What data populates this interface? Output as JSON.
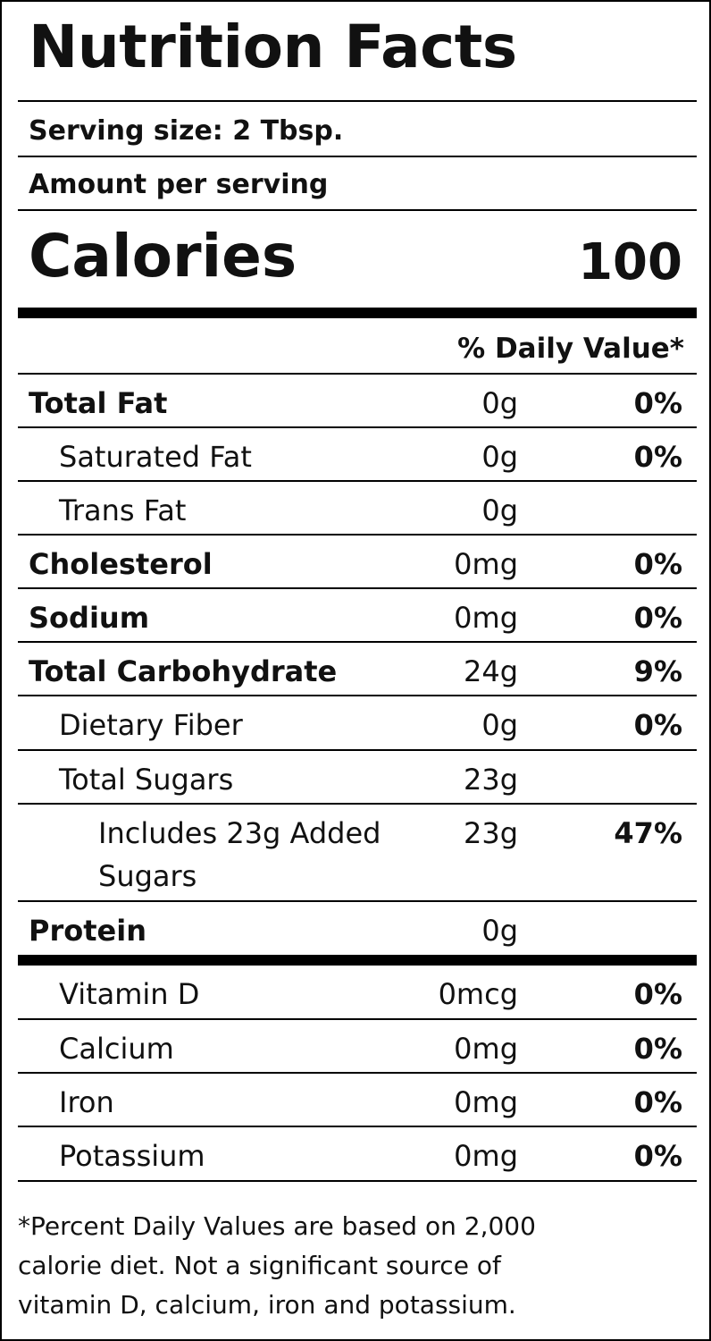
{
  "title": "Nutrition Facts",
  "serving_size": "Serving size: 2 Tbsp.",
  "amount_per_serving": "Amount per serving",
  "calories": {
    "label": "Calories",
    "value": "100"
  },
  "daily_value_header": "% Daily Value*",
  "nutrients": [
    {
      "name": "Total Fat",
      "amount": "0g",
      "dv": "0%"
    },
    {
      "name": "Saturated Fat",
      "amount": "0g",
      "dv": "0%"
    },
    {
      "name": "Trans Fat",
      "amount": "0g",
      "dv": ""
    },
    {
      "name": "Cholesterol",
      "amount": "0mg",
      "dv": "0%"
    },
    {
      "name": "Sodium",
      "amount": "0mg",
      "dv": "0%"
    },
    {
      "name": "Total Carbohydrate",
      "amount": "24g",
      "dv": "9%"
    },
    {
      "name": "Dietary Fiber",
      "amount": "0g",
      "dv": "0%"
    },
    {
      "name": "Total Sugars",
      "amount": "23g",
      "dv": ""
    },
    {
      "name_line1": "Includes 23g Added",
      "name_line2": "Sugars",
      "amount": "23g",
      "dv": "47%"
    },
    {
      "name": "Protein",
      "amount": "0g",
      "dv": ""
    }
  ],
  "vitamins": [
    {
      "name": "Vitamin D",
      "amount": "0mcg",
      "dv": "0%"
    },
    {
      "name": "Calcium",
      "amount": "0mg",
      "dv": "0%"
    },
    {
      "name": "Iron",
      "amount": "0mg",
      "dv": "0%"
    },
    {
      "name": "Potassium",
      "amount": "0mg",
      "dv": "0%"
    }
  ],
  "footnote": {
    "line1": "*Percent Daily Values are based on 2,000",
    "line2": "calorie diet. Not a significant source of",
    "line3": "vitamin D, calcium, iron and potassium."
  }
}
